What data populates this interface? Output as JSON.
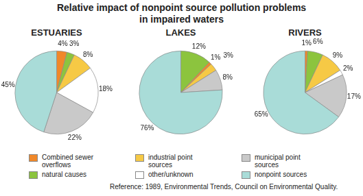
{
  "title": [
    "Relative impact of nonpoint source pollution problems",
    "in impaired waters"
  ],
  "legend_entries": [
    {
      "name": "Combined sewer overflows",
      "color": "#f0882a"
    },
    {
      "name": "natural causes",
      "color": "#8cc43e"
    },
    {
      "name": "industrial point sources",
      "color": "#f6c945"
    },
    {
      "name": "other/unknown",
      "color": "#ffffff"
    },
    {
      "name": "municipal point sources",
      "color": "#c9c9c9"
    },
    {
      "name": "nonpoint sources",
      "color": "#a9dcd8"
    }
  ],
  "source": "Reference: 1989, Environmental Trends, Council on Environmental Quality.",
  "chart_data": [
    {
      "type": "pie",
      "title": "ESTUARIES",
      "categories": [
        "Combined sewer overflows",
        "natural causes",
        "industrial point sources",
        "other/unknown",
        "municipal point sources",
        "nonpoint sources"
      ],
      "values": [
        4,
        3,
        8,
        18,
        22,
        45
      ],
      "value_labels": [
        "4%",
        "3%",
        "8%",
        "18%",
        "22%",
        "45%"
      ],
      "colors": [
        "#f0882a",
        "#8cc43e",
        "#f6c945",
        "#ffffff",
        "#c9c9c9",
        "#a9dcd8"
      ],
      "data_labels": true
    },
    {
      "type": "pie",
      "title": "LAKES",
      "categories": [
        "natural causes",
        "Combined sewer overflows",
        "industrial point sources",
        "municipal point sources",
        "nonpoint sources"
      ],
      "values": [
        12,
        1,
        3,
        8,
        76
      ],
      "value_labels": [
        "12%",
        "1%",
        "3%",
        "8%",
        "76%"
      ],
      "colors": [
        "#8cc43e",
        "#f0882a",
        "#f6c945",
        "#c9c9c9",
        "#a9dcd8"
      ],
      "data_labels": true
    },
    {
      "type": "pie",
      "title": "RIVERS",
      "categories": [
        "Combined sewer overflows",
        "natural causes",
        "industrial point sources",
        "other/unknown",
        "municipal point sources",
        "nonpoint sources"
      ],
      "values": [
        1,
        6,
        9,
        2,
        17,
        65
      ],
      "value_labels": [
        "1%",
        "6%",
        "9%",
        "2%",
        "17%",
        "65%"
      ],
      "colors": [
        "#f0882a",
        "#8cc43e",
        "#f6c945",
        "#ffffff",
        "#c9c9c9",
        "#a9dcd8"
      ],
      "data_labels": true
    }
  ]
}
